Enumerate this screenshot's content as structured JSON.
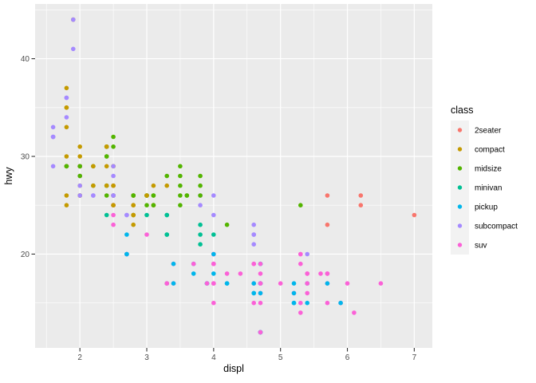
{
  "chart_data": {
    "type": "scatter",
    "title": "",
    "xlabel": "displ",
    "ylabel": "hwy",
    "legend_title": "class",
    "legend_position": "right",
    "grid": true,
    "xlim": [
      1.33,
      7.27
    ],
    "ylim": [
      10.4,
      45.6
    ],
    "x_ticks": [
      2,
      3,
      4,
      5,
      6,
      7
    ],
    "y_ticks": [
      20,
      30,
      40
    ],
    "x_minor": [
      1.5,
      2.5,
      3.5,
      4.5,
      5.5,
      6.5
    ],
    "y_minor": [
      15,
      25,
      35,
      45
    ],
    "panel_bg": "#EBEBEB",
    "grid_color": "#FFFFFF",
    "legend_key_bg": "#F2F2F2",
    "tick_color": "#333333",
    "tick_label_color": "#4D4D4D",
    "classes": [
      {
        "label": "2seater",
        "color": "#F8766D"
      },
      {
        "label": "compact",
        "color": "#C49A00"
      },
      {
        "label": "midsize",
        "color": "#53B400"
      },
      {
        "label": "minivan",
        "color": "#00C094"
      },
      {
        "label": "pickup",
        "color": "#00B6EB"
      },
      {
        "label": "subcompact",
        "color": "#A58AFF"
      },
      {
        "label": "suv",
        "color": "#FB61D7"
      }
    ],
    "points": [
      [
        1.8,
        29,
        1
      ],
      [
        1.8,
        29,
        1
      ],
      [
        2,
        31,
        1
      ],
      [
        2,
        30,
        1
      ],
      [
        2.8,
        26,
        1
      ],
      [
        2.8,
        26,
        1
      ],
      [
        3.1,
        27,
        1
      ],
      [
        1.8,
        26,
        1
      ],
      [
        1.8,
        25,
        1
      ],
      [
        2,
        28,
        1
      ],
      [
        2,
        27,
        1
      ],
      [
        2.8,
        25,
        1
      ],
      [
        2.8,
        25,
        1
      ],
      [
        3.1,
        25,
        1
      ],
      [
        3.1,
        25,
        1
      ],
      [
        2.8,
        24,
        2
      ],
      [
        3.1,
        25,
        2
      ],
      [
        4.2,
        23,
        2
      ],
      [
        5.3,
        20,
        6
      ],
      [
        5.3,
        15,
        6
      ],
      [
        5.3,
        20,
        6
      ],
      [
        5.7,
        17,
        6
      ],
      [
        6,
        17,
        6
      ],
      [
        5.7,
        26,
        0
      ],
      [
        5.7,
        23,
        0
      ],
      [
        6.2,
        26,
        0
      ],
      [
        6.2,
        25,
        0
      ],
      [
        7,
        24,
        0
      ],
      [
        5.3,
        19,
        6
      ],
      [
        5.3,
        14,
        6
      ],
      [
        5.7,
        15,
        6
      ],
      [
        6.5,
        17,
        6
      ],
      [
        2.4,
        27,
        2
      ],
      [
        2.4,
        30,
        2
      ],
      [
        3.1,
        26,
        2
      ],
      [
        3.5,
        29,
        2
      ],
      [
        3.6,
        26,
        2
      ],
      [
        2.4,
        24,
        3
      ],
      [
        3,
        24,
        3
      ],
      [
        3.3,
        22,
        3
      ],
      [
        3.3,
        22,
        3
      ],
      [
        3.3,
        24,
        3
      ],
      [
        3.3,
        24,
        3
      ],
      [
        3.3,
        17,
        3
      ],
      [
        3.8,
        22,
        3
      ],
      [
        3.8,
        21,
        3
      ],
      [
        3.8,
        23,
        3
      ],
      [
        4,
        22,
        3
      ],
      [
        3.7,
        19,
        4
      ],
      [
        3.7,
        18,
        4
      ],
      [
        3.9,
        17,
        4
      ],
      [
        3.9,
        17,
        4
      ],
      [
        4.7,
        19,
        4
      ],
      [
        4.7,
        19,
        4
      ],
      [
        4.7,
        12,
        4
      ],
      [
        5.2,
        17,
        4
      ],
      [
        5.2,
        15,
        4
      ],
      [
        3.9,
        17,
        6
      ],
      [
        4.7,
        17,
        6
      ],
      [
        4.7,
        12,
        6
      ],
      [
        4.7,
        16,
        6
      ],
      [
        4.7,
        18,
        6
      ],
      [
        5.2,
        16,
        6
      ],
      [
        5.9,
        15,
        6
      ],
      [
        4.7,
        17,
        4
      ],
      [
        4.7,
        12,
        4
      ],
      [
        4.7,
        17,
        4
      ],
      [
        4.7,
        12,
        4
      ],
      [
        4.7,
        16,
        4
      ],
      [
        4.7,
        17,
        4
      ],
      [
        5.2,
        15,
        4
      ],
      [
        5.2,
        16,
        4
      ],
      [
        5.7,
        17,
        4
      ],
      [
        5.9,
        15,
        4
      ],
      [
        4.6,
        17,
        6
      ],
      [
        5.4,
        17,
        6
      ],
      [
        5.4,
        18,
        6
      ],
      [
        4,
        17,
        6
      ],
      [
        4,
        19,
        6
      ],
      [
        4,
        17,
        6
      ],
      [
        4,
        19,
        6
      ],
      [
        4.6,
        19,
        6
      ],
      [
        4.2,
        17,
        4
      ],
      [
        4.2,
        17,
        4
      ],
      [
        4.6,
        16,
        4
      ],
      [
        4.6,
        16,
        4
      ],
      [
        4.6,
        17,
        4
      ],
      [
        5.4,
        15,
        4
      ],
      [
        5.4,
        17,
        4
      ],
      [
        3.8,
        26,
        5
      ],
      [
        3.8,
        25,
        5
      ],
      [
        4,
        26,
        5
      ],
      [
        4,
        24,
        5
      ],
      [
        4.6,
        21,
        5
      ],
      [
        4.6,
        22,
        5
      ],
      [
        4.6,
        23,
        5
      ],
      [
        4.6,
        22,
        5
      ],
      [
        5.4,
        20,
        5
      ],
      [
        1.6,
        33,
        5
      ],
      [
        1.6,
        32,
        5
      ],
      [
        1.6,
        32,
        5
      ],
      [
        1.6,
        29,
        5
      ],
      [
        1.6,
        32,
        5
      ],
      [
        1.8,
        34,
        5
      ],
      [
        1.8,
        36,
        5
      ],
      [
        1.8,
        36,
        5
      ],
      [
        2,
        29,
        5
      ],
      [
        2.4,
        26,
        2
      ],
      [
        2.4,
        27,
        2
      ],
      [
        2.4,
        30,
        2
      ],
      [
        2.4,
        31,
        2
      ],
      [
        2.5,
        26,
        2
      ],
      [
        2.5,
        26,
        2
      ],
      [
        3.3,
        28,
        2
      ],
      [
        2,
        26,
        5
      ],
      [
        2,
        29,
        5
      ],
      [
        2,
        28,
        5
      ],
      [
        2,
        27,
        5
      ],
      [
        2.7,
        24,
        5
      ],
      [
        2.7,
        24,
        5
      ],
      [
        3,
        22,
        6
      ],
      [
        3.7,
        19,
        6
      ],
      [
        4,
        20,
        6
      ],
      [
        4.7,
        17,
        6
      ],
      [
        4.7,
        12,
        6
      ],
      [
        4.7,
        19,
        6
      ],
      [
        5.7,
        18,
        6
      ],
      [
        6.1,
        14,
        6
      ],
      [
        4,
        15,
        6
      ],
      [
        4.2,
        18,
        6
      ],
      [
        4.4,
        18,
        6
      ],
      [
        4.6,
        15,
        6
      ],
      [
        5.4,
        17,
        6
      ],
      [
        5.4,
        16,
        6
      ],
      [
        5.4,
        18,
        6
      ],
      [
        4,
        17,
        6
      ],
      [
        4,
        19,
        6
      ],
      [
        4.6,
        19,
        6
      ],
      [
        5,
        17,
        6
      ],
      [
        2.4,
        29,
        1
      ],
      [
        2.4,
        27,
        1
      ],
      [
        2.5,
        31,
        2
      ],
      [
        2.5,
        32,
        2
      ],
      [
        3.5,
        27,
        2
      ],
      [
        3.5,
        26,
        2
      ],
      [
        3,
        26,
        2
      ],
      [
        3,
        25,
        2
      ],
      [
        3.5,
        25,
        2
      ],
      [
        3.3,
        17,
        6
      ],
      [
        3.3,
        17,
        6
      ],
      [
        4,
        20,
        6
      ],
      [
        5.6,
        18,
        6
      ],
      [
        3.1,
        26,
        2
      ],
      [
        3.8,
        26,
        2
      ],
      [
        3.8,
        27,
        2
      ],
      [
        3.8,
        28,
        2
      ],
      [
        5.3,
        25,
        2
      ],
      [
        2.5,
        25,
        6
      ],
      [
        2.5,
        24,
        6
      ],
      [
        2.5,
        27,
        6
      ],
      [
        2.5,
        25,
        6
      ],
      [
        2.5,
        26,
        6
      ],
      [
        2.5,
        23,
        6
      ],
      [
        2.2,
        26,
        5
      ],
      [
        2.2,
        26,
        5
      ],
      [
        2.5,
        26,
        5
      ],
      [
        2.5,
        26,
        5
      ],
      [
        2.5,
        25,
        1
      ],
      [
        2.5,
        27,
        1
      ],
      [
        2.5,
        25,
        1
      ],
      [
        2.5,
        27,
        1
      ],
      [
        2.7,
        20,
        6
      ],
      [
        2.7,
        20,
        6
      ],
      [
        3.4,
        19,
        6
      ],
      [
        3.4,
        17,
        6
      ],
      [
        4,
        20,
        6
      ],
      [
        4.7,
        17,
        6
      ],
      [
        2.2,
        29,
        2
      ],
      [
        2.2,
        27,
        2
      ],
      [
        2.4,
        31,
        2
      ],
      [
        2.4,
        31,
        2
      ],
      [
        3,
        26,
        2
      ],
      [
        3,
        26,
        2
      ],
      [
        3.5,
        28,
        2
      ],
      [
        2.2,
        27,
        1
      ],
      [
        2.2,
        29,
        1
      ],
      [
        2.4,
        31,
        1
      ],
      [
        2.4,
        31,
        1
      ],
      [
        3,
        26,
        1
      ],
      [
        3.3,
        27,
        1
      ],
      [
        1.8,
        30,
        1
      ],
      [
        1.8,
        33,
        1
      ],
      [
        1.8,
        35,
        1
      ],
      [
        1.8,
        37,
        1
      ],
      [
        1.8,
        35,
        1
      ],
      [
        4.7,
        15,
        6
      ],
      [
        5.7,
        18,
        6
      ],
      [
        2.7,
        20,
        4
      ],
      [
        2.7,
        20,
        4
      ],
      [
        2.7,
        22,
        4
      ],
      [
        3.4,
        17,
        4
      ],
      [
        3.4,
        19,
        4
      ],
      [
        4,
        18,
        4
      ],
      [
        4,
        20,
        4
      ],
      [
        2,
        29,
        1
      ],
      [
        2,
        26,
        1
      ],
      [
        2,
        29,
        1
      ],
      [
        2,
        29,
        1
      ],
      [
        2.8,
        24,
        1
      ],
      [
        1.9,
        44,
        1
      ],
      [
        2,
        29,
        1
      ],
      [
        2,
        26,
        1
      ],
      [
        2,
        29,
        1
      ],
      [
        2,
        29,
        1
      ],
      [
        2.5,
        29,
        1
      ],
      [
        2.5,
        29,
        1
      ],
      [
        2.8,
        23,
        1
      ],
      [
        2.8,
        24,
        1
      ],
      [
        1.9,
        44,
        5
      ],
      [
        1.9,
        41,
        5
      ],
      [
        2,
        29,
        5
      ],
      [
        2,
        26,
        5
      ],
      [
        2.5,
        28,
        5
      ],
      [
        2.5,
        29,
        5
      ],
      [
        1.8,
        29,
        2
      ],
      [
        1.8,
        29,
        2
      ],
      [
        2,
        28,
        2
      ],
      [
        2,
        29,
        2
      ],
      [
        2.8,
        26,
        2
      ],
      [
        2.8,
        26,
        2
      ],
      [
        3.6,
        26,
        2
      ]
    ]
  }
}
